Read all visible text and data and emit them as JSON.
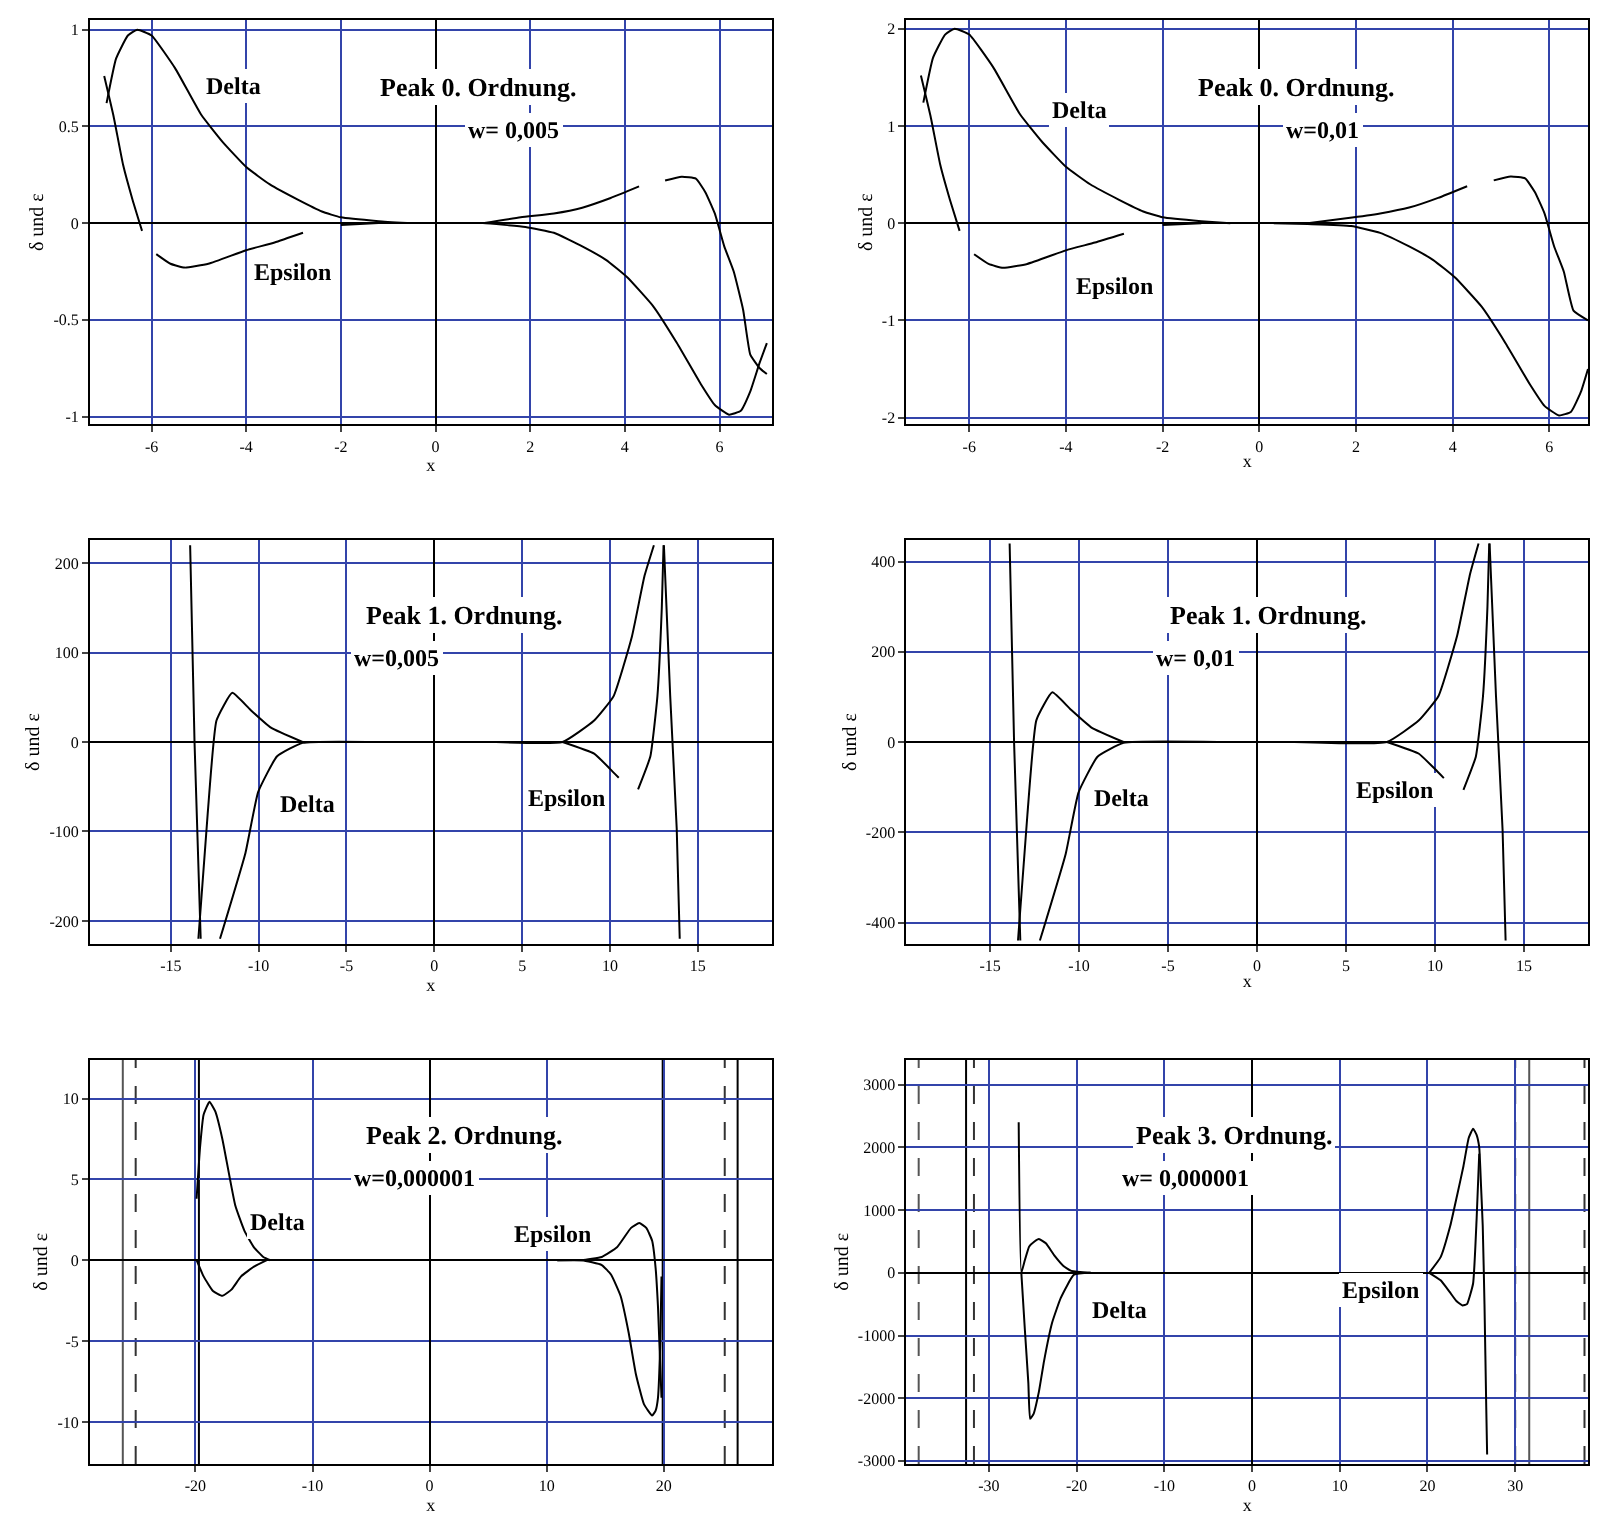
{
  "chart_data": [
    {
      "type": "line",
      "title": "Peak 0. Ordnung.",
      "subtitle": "w= 0,005",
      "xlabel": "x",
      "ylabel": "δ und ε",
      "xlim": [
        -7.3,
        7.1
      ],
      "ylim": [
        -1.04,
        1.05
      ],
      "xticks": [
        -6,
        -4,
        -2,
        0,
        2,
        4,
        6
      ],
      "yticks": [
        -1,
        -0.5,
        0,
        0.5,
        1
      ],
      "grid": true,
      "series": [
        {
          "color": "#000000",
          "x": [
            -6.95,
            -6.75,
            -6.5,
            -6.3,
            -6.0,
            -5.5,
            -4.95,
            -4.5,
            -4.0,
            -3.5,
            -2.9,
            -2.4,
            -2.0,
            -1.2,
            -0.6,
            0,
            0.3,
            1.0,
            1.9,
            2.5,
            3.1,
            3.6,
            4.05,
            4.6,
            5.1,
            5.6,
            5.9,
            6.2,
            6.45,
            6.65,
            6.85,
            7.0
          ],
          "values": [
            0.62,
            0.85,
            0.97,
            1.0,
            0.97,
            0.8,
            0.56,
            0.42,
            0.29,
            0.2,
            0.12,
            0.06,
            0.03,
            0.01,
            0.0,
            null,
            0.0,
            0.0,
            -0.02,
            -0.05,
            -0.12,
            -0.19,
            -0.28,
            -0.43,
            -0.62,
            -0.83,
            -0.94,
            -0.99,
            -0.97,
            -0.87,
            -0.72,
            -0.62
          ]
        },
        {
          "color": "#000000",
          "x": [
            -7.0,
            -6.8,
            -6.6,
            -6.4,
            -6.2,
            -6.05,
            -5.9,
            -5.6,
            -5.3,
            -4.8,
            -4.0,
            -3.4,
            -2.8,
            -2.4,
            -2.0,
            -1.2,
            0,
            1.0,
            1.8,
            2.5,
            3.1,
            3.7,
            4.3,
            4.6,
            4.85,
            5.2,
            5.5,
            5.7,
            5.9,
            6.1,
            6.3,
            6.5,
            6.65,
            6.85,
            7.0
          ],
          "values": [
            0.76,
            0.55,
            0.3,
            0.12,
            -0.04,
            null,
            -0.16,
            -0.21,
            -0.23,
            -0.21,
            -0.14,
            -0.1,
            -0.05,
            null,
            -0.01,
            0.0,
            null,
            0.0,
            0.03,
            0.05,
            0.08,
            0.13,
            0.19,
            null,
            0.22,
            0.24,
            0.23,
            0.16,
            0.05,
            -0.12,
            -0.25,
            -0.45,
            -0.68,
            -0.75,
            -0.78
          ]
        }
      ],
      "annotations": [
        {
          "text": "Delta",
          "x": -4.3,
          "y": 0.71
        },
        {
          "text": "Epsilon",
          "x": -3.0,
          "y": -0.25
        }
      ]
    },
    {
      "type": "line",
      "title": "Peak 0. Ordnung.",
      "subtitle": "w=0,01",
      "xlabel": "x",
      "ylabel": "δ und ε",
      "xlim": [
        -7.3,
        6.8
      ],
      "ylim": [
        -2.07,
        2.09
      ],
      "xticks": [
        -6,
        -4,
        -2,
        0,
        2,
        4,
        6
      ],
      "yticks": [
        -2,
        -1,
        0,
        1,
        2
      ],
      "grid": true,
      "series": [
        {
          "color": "#000000",
          "x": [
            -6.95,
            -6.75,
            -6.5,
            -6.3,
            -6.0,
            -5.5,
            -4.95,
            -4.5,
            -4.0,
            -3.5,
            -2.9,
            -2.4,
            -2.0,
            -1.2,
            -0.6,
            0,
            0.3,
            1.0,
            1.9,
            2.5,
            3.1,
            3.6,
            4.05,
            4.6,
            5.1,
            5.6,
            5.9,
            6.2,
            6.45,
            6.65,
            6.8
          ],
          "values": [
            1.24,
            1.7,
            1.94,
            2.0,
            1.94,
            1.6,
            1.12,
            0.84,
            0.58,
            0.4,
            0.24,
            0.12,
            0.06,
            0.02,
            0.0,
            null,
            0.0,
            -0.01,
            -0.03,
            -0.1,
            -0.24,
            -0.38,
            -0.56,
            -0.86,
            -1.24,
            -1.66,
            -1.88,
            -1.98,
            -1.94,
            -1.74,
            -1.5
          ]
        },
        {
          "color": "#000000",
          "x": [
            -7.0,
            -6.8,
            -6.6,
            -6.4,
            -6.2,
            -6.05,
            -5.9,
            -5.6,
            -5.3,
            -4.8,
            -4.0,
            -3.4,
            -2.8,
            -2.4,
            -2.0,
            -1.2,
            0,
            1.0,
            1.8,
            2.5,
            3.1,
            3.7,
            4.3,
            4.6,
            4.85,
            5.2,
            5.5,
            5.7,
            5.9,
            6.1,
            6.3,
            6.5,
            6.8
          ],
          "values": [
            1.52,
            1.1,
            0.6,
            0.24,
            -0.08,
            null,
            -0.32,
            -0.42,
            -0.46,
            -0.42,
            -0.28,
            -0.2,
            -0.11,
            null,
            -0.02,
            0.0,
            null,
            0.0,
            0.05,
            0.1,
            0.16,
            0.26,
            0.38,
            null,
            0.44,
            0.48,
            0.46,
            0.32,
            0.1,
            -0.24,
            -0.5,
            -0.9,
            -1.0
          ]
        }
      ],
      "annotations": [
        {
          "text": "Delta",
          "x": -3.75,
          "y": 1.16
        },
        {
          "text": "Epsilon",
          "x": -2.97,
          "y": -0.65
        }
      ]
    },
    {
      "type": "line",
      "title": "Peak 1. Ordnung.",
      "subtitle": "w=0,005",
      "xlabel": "x",
      "ylabel": "δ und ε",
      "xlim": [
        -19.6,
        19.2
      ],
      "ylim": [
        -226,
        226
      ],
      "xticks": [
        -15,
        -10,
        -5,
        0,
        5,
        10,
        15
      ],
      "yticks": [
        -200,
        -100,
        0,
        100,
        200
      ],
      "grid": true,
      "series": [
        {
          "color": "#000000",
          "x": [
            -13.9,
            -13.65,
            -13.3,
            -12.75,
            -12.2,
            -10.75,
            -10.03,
            -8.95,
            -7.5,
            -3.2,
            0,
            3.5,
            7.3,
            9.1,
            10.2,
            11.25,
            11.97,
            12.5,
            12.8,
            13.07,
            13.43,
            13.8,
            13.97
          ],
          "values": [
            220,
            0,
            -220,
            null,
            -220,
            -124,
            -56,
            -16,
            -1,
            0,
            null,
            0,
            0,
            24,
            51,
            118,
            186,
            220,
            null,
            220,
            51,
            -97,
            -220
          ]
        },
        {
          "color": "#000000",
          "x": [
            -13.43,
            -12.9,
            -12.4,
            -11.5,
            -10.47,
            -9.3,
            -7.5,
            0,
            7.3,
            9.1,
            10.0,
            10.5,
            11.0,
            11.6,
            12.3,
            12.7,
            12.95,
            13.05
          ],
          "values": [
            -220,
            -80,
            24,
            55,
            36,
            16,
            0,
            null,
            0,
            -13,
            -30,
            -40,
            null,
            -53,
            -16,
            51,
            150,
            220
          ]
        }
      ],
      "annotations": [
        {
          "text": "Delta",
          "x": -7.3,
          "y": -70
        },
        {
          "text": "Epsilon",
          "x": 7.6,
          "y": -62
        }
      ]
    },
    {
      "type": "line",
      "title": "Peak 1. Ordnung.",
      "subtitle": "w= 0,01",
      "xlabel": "x",
      "ylabel": "δ und ε",
      "xlim": [
        -19.7,
        18.6
      ],
      "ylim": [
        -448,
        448
      ],
      "xticks": [
        -15,
        -10,
        -5,
        0,
        5,
        10,
        15
      ],
      "yticks": [
        -400,
        -200,
        0,
        200,
        400
      ],
      "grid": true,
      "series": [
        {
          "color": "#000000",
          "x": [
            -13.9,
            -13.65,
            -13.3,
            -12.75,
            -12.2,
            -10.75,
            -10.03,
            -8.95,
            -7.5,
            -2.2,
            0,
            2.1,
            7.3,
            9.1,
            10.2,
            11.25,
            11.97,
            12.45,
            12.75,
            13.07,
            13.43,
            13.8,
            13.97
          ],
          "values": [
            440,
            0,
            -440,
            null,
            -440,
            -248,
            -112,
            -32,
            -2,
            0,
            null,
            0,
            0,
            48,
            102,
            236,
            372,
            440,
            null,
            440,
            102,
            -194,
            -440
          ]
        },
        {
          "color": "#000000",
          "x": [
            -13.43,
            -12.9,
            -12.4,
            -11.5,
            -10.47,
            -9.3,
            -7.5,
            0,
            7.3,
            9.1,
            10.0,
            10.5,
            11.0,
            11.6,
            12.3,
            12.7,
            12.95,
            13.05
          ],
          "values": [
            -440,
            -160,
            48,
            110,
            72,
            32,
            0,
            null,
            0,
            -26,
            -60,
            -80,
            null,
            -106,
            -32,
            102,
            300,
            440
          ]
        }
      ],
      "annotations": [
        {
          "text": "Delta",
          "x": -7.6,
          "y": -124
        },
        {
          "text": "Epsilon",
          "x": 7.8,
          "y": -107
        }
      ]
    },
    {
      "type": "line",
      "title": "Peak 2. Ordnung.",
      "subtitle": "w=0,000001",
      "xlabel": "x",
      "ylabel": "δ und ε",
      "xlim": [
        -29,
        29.2
      ],
      "ylim": [
        -12.6,
        12.4
      ],
      "xticks": [
        -20,
        -10,
        0,
        10,
        20
      ],
      "yticks": [
        -10,
        -5,
        0,
        5,
        10
      ],
      "grid": true,
      "series": [
        {
          "color": "#000000",
          "x": [
            -19.9,
            -19.6,
            -19.3,
            -18.8,
            -18.3,
            -17.7,
            -16.6,
            -15.8,
            -15,
            -14.2,
            -13.6,
            0,
            10.9,
            13,
            14.7,
            16,
            17.2,
            17.9,
            18.5,
            19,
            19.3,
            19.5,
            19.8
          ],
          "values": [
            3.8,
            7.0,
            9.0,
            9.8,
            9.2,
            7.5,
            3.4,
            1.8,
            0.8,
            0.2,
            0,
            null,
            0,
            0.0,
            0.2,
            0.8,
            2.0,
            2.3,
            2.0,
            1.2,
            -0.5,
            -2.9,
            -8.5
          ]
        },
        {
          "color": "#000000",
          "x": [
            -19.9,
            -19.3,
            -18.5,
            -17.7,
            -16.9,
            -16.1,
            -15,
            -13.9,
            0,
            10.9,
            13,
            14.7,
            15.5,
            16.3,
            17,
            17.6,
            18.3,
            19,
            19.3,
            19.5,
            19.7,
            19.8
          ],
          "values": [
            0.0,
            -1.0,
            -1.9,
            -2.2,
            -1.8,
            -1.0,
            -0.4,
            0,
            null,
            0,
            0.0,
            -0.3,
            -0.9,
            -2.2,
            -4.5,
            -7.0,
            -8.9,
            -9.6,
            -9.3,
            -8.5,
            -5,
            -1
          ]
        }
      ],
      "ref_lines": [
        {
          "axis": "x",
          "value": -26.2,
          "color": "#555555"
        },
        {
          "axis": "x",
          "value": -25.1,
          "color": "#333333",
          "line_style": "dashed"
        },
        {
          "axis": "x",
          "value": -19.7,
          "color": "#000000"
        },
        {
          "axis": "x",
          "value": 19.9,
          "color": "#000000"
        },
        {
          "axis": "x",
          "value": 25.2,
          "color": "#333333",
          "line_style": "dashed"
        },
        {
          "axis": "x",
          "value": 26.3,
          "color": "#000000"
        }
      ],
      "annotations": [
        {
          "text": "Delta",
          "x": -13.1,
          "y": 2.4
        },
        {
          "text": "Epsilon",
          "x": 10.6,
          "y": 1.6
        }
      ]
    },
    {
      "type": "line",
      "title": "Peak 3. Ordnung.",
      "subtitle": "w= 0,000001",
      "xlabel": "x",
      "ylabel": "δ und ε",
      "xlim": [
        -39.4,
        38.3
      ],
      "ylim": [
        -3050,
        3400
      ],
      "xticks": [
        -30,
        -20,
        -10,
        0,
        10,
        20,
        30
      ],
      "yticks": [
        -3000,
        -2000,
        -1000,
        0,
        1000,
        2000,
        3000
      ],
      "grid": true,
      "series": [
        {
          "color": "#000000",
          "x": [
            -26.6,
            -26.3,
            -25.9,
            -25.4,
            -24.8,
            -24.3,
            -23.5,
            -22.5,
            -21.5,
            -20.6,
            -18.4,
            0,
            20.2,
            21.5,
            22.6,
            23.4,
            24.1,
            24.7,
            25.2,
            25.6,
            25.9,
            26.1,
            26.3,
            26.5,
            26.7,
            26.8
          ],
          "values": [
            2400,
            0,
            200,
            420,
            500,
            540,
            470,
            270,
            110,
            30,
            0,
            null,
            0,
            250,
            750,
            1250,
            1700,
            2150,
            2300,
            2200,
            2000,
            1400,
            750,
            -500,
            -2150,
            -2900
          ]
        },
        {
          "color": "#000000",
          "x": [
            -26.3,
            -25.9,
            -25.5,
            -25.3,
            -24.9,
            -24.3,
            -23.7,
            -22.8,
            -21.8,
            -20.3,
            -18.4,
            0,
            20.2,
            21.5,
            22.5,
            23.3,
            24,
            24.5,
            25.2,
            25.6,
            25.9
          ],
          "values": [
            0,
            -900,
            -1760,
            -2330,
            -2250,
            -1900,
            -1400,
            -800,
            -400,
            -30,
            0,
            null,
            0,
            -120,
            -300,
            -450,
            -520,
            -500,
            -170,
            850,
            1900
          ]
        }
      ],
      "ref_lines": [
        {
          "axis": "x",
          "value": -38,
          "color": "#555555",
          "line_style": "dashed"
        },
        {
          "axis": "x",
          "value": -32.6,
          "color": "#000000"
        },
        {
          "axis": "x",
          "value": -31.7,
          "color": "#333333",
          "line_style": "dashed"
        },
        {
          "axis": "x",
          "value": 30,
          "color": "#333333",
          "line_style": "dashed"
        },
        {
          "axis": "x",
          "value": 31.6,
          "color": "#555555"
        },
        {
          "axis": "x",
          "value": 37.9,
          "color": "#333333",
          "line_style": "dashed"
        }
      ],
      "annotations": [
        {
          "text": "Delta",
          "x": -15.1,
          "y": -600
        },
        {
          "text": "Epsilon",
          "x": 14.8,
          "y": -260
        }
      ]
    }
  ]
}
